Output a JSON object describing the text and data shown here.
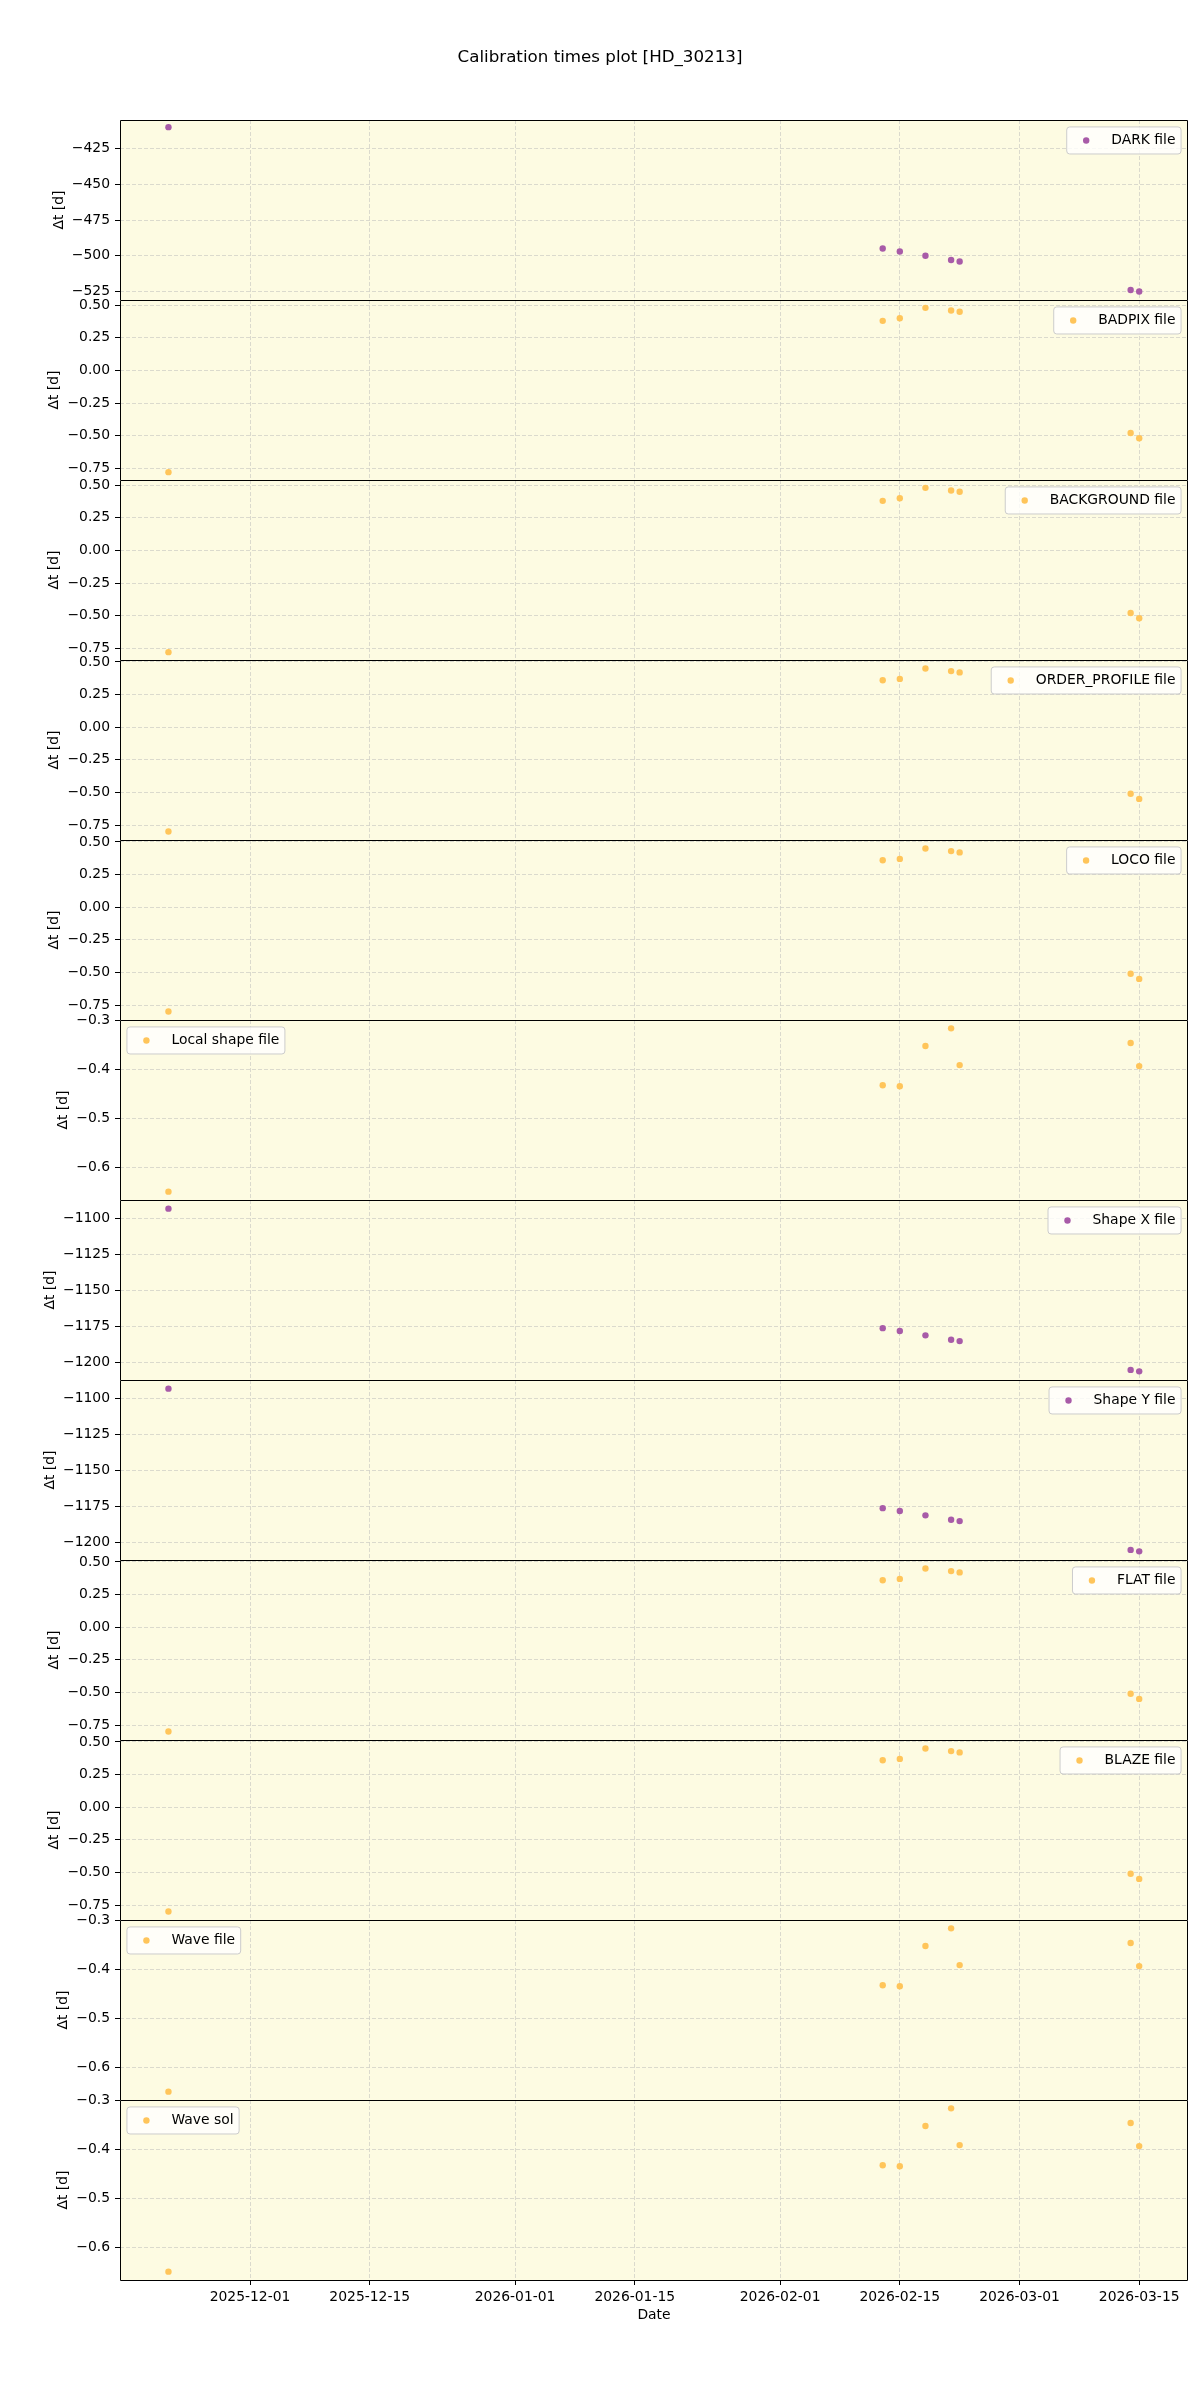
{
  "chart_data": [
    {
      "type": "scatter",
      "title": "Calibration times plot [HD_30213]",
      "ylabel": "Δt [d]",
      "x": [
        "2025-11-21T11:00",
        "2026-02-13",
        "2026-02-15",
        "2026-02-18",
        "2026-02-21",
        "2026-02-22",
        "2026-03-14",
        "2026-03-15"
      ],
      "series": [
        {
          "name": "DARK file",
          "color": "#a85ba8",
          "values": [
            -410,
            -495,
            -497,
            -500,
            -503,
            -504,
            -524,
            -525
          ]
        }
      ],
      "xlim": [
        "2025-11-15T19:00",
        "2026-03-20T17:00"
      ],
      "xticks": [
        "2025-12-01",
        "2025-12-15",
        "2026-01-01",
        "2026-01-15",
        "2026-02-01",
        "2026-02-15",
        "2026-03-01",
        "2026-03-15"
      ],
      "ylim": [
        -531,
        -405
      ],
      "yticks": [
        {
          "value": -525,
          "label": "−525"
        },
        {
          "value": -500,
          "label": "−500"
        },
        {
          "value": -475,
          "label": "−475"
        },
        {
          "value": -450,
          "label": "−450"
        },
        {
          "value": -425,
          "label": "−425"
        }
      ],
      "grid": true,
      "legend": "top right",
      "marker": "circle",
      "tick_labels": "y"
    },
    {
      "type": "scatter",
      "ylabel": "Δt [d]",
      "x": [
        "2025-11-21T11:00",
        "2026-02-13",
        "2026-02-15",
        "2026-02-18",
        "2026-02-21",
        "2026-02-22",
        "2026-03-14",
        "2026-03-15"
      ],
      "series": [
        {
          "name": "BADPIX file",
          "color": "#ffc55a",
          "values": [
            -0.78,
            0.38,
            0.4,
            0.48,
            0.46,
            0.45,
            -0.48,
            -0.52
          ]
        }
      ],
      "xlim": [
        "2025-11-15T19:00",
        "2026-03-20T17:00"
      ],
      "xticks": [
        "2025-12-01",
        "2025-12-15",
        "2026-01-01",
        "2026-01-15",
        "2026-02-01",
        "2026-02-15",
        "2026-03-01",
        "2026-03-15"
      ],
      "ylim": [
        -0.84,
        0.54
      ],
      "yticks": [
        {
          "value": -0.75,
          "label": "−0.75"
        },
        {
          "value": -0.5,
          "label": "−0.50"
        },
        {
          "value": -0.25,
          "label": "−0.25"
        },
        {
          "value": 0,
          "label": "0.00"
        },
        {
          "value": 0.25,
          "label": "0.25"
        },
        {
          "value": 0.5,
          "label": "0.50"
        }
      ],
      "grid": true,
      "legend": "top right",
      "marker": "circle",
      "tick_labels": "y"
    },
    {
      "type": "scatter",
      "ylabel": "Δt [d]",
      "x": [
        "2025-11-21T11:00",
        "2026-02-13",
        "2026-02-15",
        "2026-02-18",
        "2026-02-21",
        "2026-02-22",
        "2026-03-14",
        "2026-03-15"
      ],
      "series": [
        {
          "name": "BACKGROUND file",
          "color": "#ffc55a",
          "values": [
            -0.78,
            0.38,
            0.4,
            0.48,
            0.46,
            0.45,
            -0.48,
            -0.52
          ]
        }
      ],
      "xlim": [
        "2025-11-15T19:00",
        "2026-03-20T17:00"
      ],
      "xticks": [
        "2025-12-01",
        "2025-12-15",
        "2026-01-01",
        "2026-01-15",
        "2026-02-01",
        "2026-02-15",
        "2026-03-01",
        "2026-03-15"
      ],
      "ylim": [
        -0.84,
        0.54
      ],
      "yticks": [
        {
          "value": -0.75,
          "label": "−0.75"
        },
        {
          "value": -0.5,
          "label": "−0.50"
        },
        {
          "value": -0.25,
          "label": "−0.25"
        },
        {
          "value": 0,
          "label": "0.00"
        },
        {
          "value": 0.25,
          "label": "0.25"
        },
        {
          "value": 0.5,
          "label": "0.50"
        }
      ],
      "grid": true,
      "legend": "top right",
      "marker": "circle",
      "tick_labels": "y"
    },
    {
      "type": "scatter",
      "ylabel": "Δt [d]",
      "x": [
        "2025-11-21T11:00",
        "2026-02-13",
        "2026-02-15",
        "2026-02-18",
        "2026-02-21",
        "2026-02-22",
        "2026-03-14",
        "2026-03-15"
      ],
      "series": [
        {
          "name": "ORDER_PROFILE file",
          "color": "#ffc55a",
          "values": [
            -0.8,
            0.36,
            0.37,
            0.45,
            0.43,
            0.42,
            -0.51,
            -0.55
          ]
        }
      ],
      "xlim": [
        "2025-11-15T19:00",
        "2026-03-20T17:00"
      ],
      "xticks": [
        "2025-12-01",
        "2025-12-15",
        "2026-01-01",
        "2026-01-15",
        "2026-02-01",
        "2026-02-15",
        "2026-03-01",
        "2026-03-15"
      ],
      "ylim": [
        -0.865,
        0.515
      ],
      "yticks": [
        {
          "value": -0.75,
          "label": "−0.75"
        },
        {
          "value": -0.5,
          "label": "−0.50"
        },
        {
          "value": -0.25,
          "label": "−0.25"
        },
        {
          "value": 0,
          "label": "0.00"
        },
        {
          "value": 0.25,
          "label": "0.25"
        },
        {
          "value": 0.5,
          "label": "0.50"
        }
      ],
      "grid": true,
      "legend": "top right",
      "marker": "circle",
      "tick_labels": "y"
    },
    {
      "type": "scatter",
      "ylabel": "Δt [d]",
      "x": [
        "2025-11-21T11:00",
        "2026-02-13",
        "2026-02-15",
        "2026-02-18",
        "2026-02-21",
        "2026-02-22",
        "2026-03-14",
        "2026-03-15"
      ],
      "series": [
        {
          "name": "LOCO file",
          "color": "#ffc55a",
          "values": [
            -0.8,
            0.36,
            0.37,
            0.45,
            0.43,
            0.42,
            -0.51,
            -0.55
          ]
        }
      ],
      "xlim": [
        "2025-11-15T19:00",
        "2026-03-20T17:00"
      ],
      "xticks": [
        "2025-12-01",
        "2025-12-15",
        "2026-01-01",
        "2026-01-15",
        "2026-02-01",
        "2026-02-15",
        "2026-03-01",
        "2026-03-15"
      ],
      "ylim": [
        -0.865,
        0.515
      ],
      "yticks": [
        {
          "value": -0.75,
          "label": "−0.75"
        },
        {
          "value": -0.5,
          "label": "−0.50"
        },
        {
          "value": -0.25,
          "label": "−0.25"
        },
        {
          "value": 0,
          "label": "0.00"
        },
        {
          "value": 0.25,
          "label": "0.25"
        },
        {
          "value": 0.5,
          "label": "0.50"
        }
      ],
      "grid": true,
      "legend": "top right",
      "marker": "circle",
      "tick_labels": "y"
    },
    {
      "type": "scatter",
      "ylabel": "Δt [d]",
      "x": [
        "2025-11-21T11:00",
        "2026-02-13",
        "2026-02-15",
        "2026-02-18",
        "2026-02-21",
        "2026-02-22",
        "2026-03-14",
        "2026-03-15"
      ],
      "series": [
        {
          "name": "Local shape file",
          "color": "#ffc55a",
          "values": [
            -0.65,
            -0.433,
            -0.435,
            -0.353,
            -0.317,
            -0.392,
            -0.347,
            -0.394
          ]
        }
      ],
      "xlim": [
        "2025-11-15T19:00",
        "2026-03-20T17:00"
      ],
      "xticks": [
        "2025-12-01",
        "2025-12-15",
        "2026-01-01",
        "2026-01-15",
        "2026-02-01",
        "2026-02-15",
        "2026-03-01",
        "2026-03-15"
      ],
      "ylim": [
        -0.667,
        -0.3
      ],
      "yticks": [
        {
          "value": -0.6,
          "label": "−0.6"
        },
        {
          "value": -0.5,
          "label": "−0.5"
        },
        {
          "value": -0.4,
          "label": "−0.4"
        },
        {
          "value": -0.3,
          "label": "−0.3"
        }
      ],
      "grid": true,
      "legend": "top left",
      "marker": "circle",
      "tick_labels": "y"
    },
    {
      "type": "scatter",
      "ylabel": "Δt [d]",
      "x": [
        "2025-11-21T11:00",
        "2026-02-13",
        "2026-02-15",
        "2026-02-18",
        "2026-02-21",
        "2026-02-22",
        "2026-03-14",
        "2026-03-15"
      ],
      "series": [
        {
          "name": "Shape X file",
          "color": "#a85ba8",
          "values": [
            -1093,
            -1176,
            -1178,
            -1181,
            -1184,
            -1185,
            -1205,
            -1206
          ]
        }
      ],
      "xlim": [
        "2025-11-15T19:00",
        "2026-03-20T17:00"
      ],
      "xticks": [
        "2025-12-01",
        "2025-12-15",
        "2026-01-01",
        "2026-01-15",
        "2026-02-01",
        "2026-02-15",
        "2026-03-01",
        "2026-03-15"
      ],
      "ylim": [
        -1212,
        -1087
      ],
      "yticks": [
        {
          "value": -1200,
          "label": "−1200"
        },
        {
          "value": -1175,
          "label": "−1175"
        },
        {
          "value": -1150,
          "label": "−1150"
        },
        {
          "value": -1125,
          "label": "−1125"
        },
        {
          "value": -1100,
          "label": "−1100"
        }
      ],
      "grid": true,
      "legend": "top right",
      "marker": "circle",
      "tick_labels": "y"
    },
    {
      "type": "scatter",
      "ylabel": "Δt [d]",
      "x": [
        "2025-11-21T11:00",
        "2026-02-13",
        "2026-02-15",
        "2026-02-18",
        "2026-02-21",
        "2026-02-22",
        "2026-03-14",
        "2026-03-15"
      ],
      "series": [
        {
          "name": "Shape Y file",
          "color": "#a85ba8",
          "values": [
            -1093,
            -1176,
            -1178,
            -1181,
            -1184,
            -1185,
            -1205,
            -1206
          ]
        }
      ],
      "xlim": [
        "2025-11-15T19:00",
        "2026-03-20T17:00"
      ],
      "xticks": [
        "2025-12-01",
        "2025-12-15",
        "2026-01-01",
        "2026-01-15",
        "2026-02-01",
        "2026-02-15",
        "2026-03-01",
        "2026-03-15"
      ],
      "ylim": [
        -1212,
        -1087
      ],
      "yticks": [
        {
          "value": -1200,
          "label": "−1200"
        },
        {
          "value": -1175,
          "label": "−1175"
        },
        {
          "value": -1150,
          "label": "−1150"
        },
        {
          "value": -1125,
          "label": "−1125"
        },
        {
          "value": -1100,
          "label": "−1100"
        }
      ],
      "grid": true,
      "legend": "top right",
      "marker": "circle",
      "tick_labels": "y"
    },
    {
      "type": "scatter",
      "ylabel": "Δt [d]",
      "x": [
        "2025-11-21T11:00",
        "2026-02-13",
        "2026-02-15",
        "2026-02-18",
        "2026-02-21",
        "2026-02-22",
        "2026-03-14",
        "2026-03-15"
      ],
      "series": [
        {
          "name": "FLAT file",
          "color": "#ffc55a",
          "values": [
            -0.8,
            0.36,
            0.37,
            0.45,
            0.43,
            0.42,
            -0.51,
            -0.55
          ]
        }
      ],
      "xlim": [
        "2025-11-15T19:00",
        "2026-03-20T17:00"
      ],
      "xticks": [
        "2025-12-01",
        "2025-12-15",
        "2026-01-01",
        "2026-01-15",
        "2026-02-01",
        "2026-02-15",
        "2026-03-01",
        "2026-03-15"
      ],
      "ylim": [
        -0.865,
        0.515
      ],
      "yticks": [
        {
          "value": -0.75,
          "label": "−0.75"
        },
        {
          "value": -0.5,
          "label": "−0.50"
        },
        {
          "value": -0.25,
          "label": "−0.25"
        },
        {
          "value": 0,
          "label": "0.00"
        },
        {
          "value": 0.25,
          "label": "0.25"
        },
        {
          "value": 0.5,
          "label": "0.50"
        }
      ],
      "grid": true,
      "legend": "top right",
      "marker": "circle",
      "tick_labels": "y"
    },
    {
      "type": "scatter",
      "ylabel": "Δt [d]",
      "x": [
        "2025-11-21T11:00",
        "2026-02-13",
        "2026-02-15",
        "2026-02-18",
        "2026-02-21",
        "2026-02-22",
        "2026-03-14",
        "2026-03-15"
      ],
      "series": [
        {
          "name": "BLAZE file",
          "color": "#ffc55a",
          "values": [
            -0.8,
            0.36,
            0.37,
            0.45,
            0.43,
            0.42,
            -0.51,
            -0.55
          ]
        }
      ],
      "xlim": [
        "2025-11-15T19:00",
        "2026-03-20T17:00"
      ],
      "xticks": [
        "2025-12-01",
        "2025-12-15",
        "2026-01-01",
        "2026-01-15",
        "2026-02-01",
        "2026-02-15",
        "2026-03-01",
        "2026-03-15"
      ],
      "ylim": [
        -0.865,
        0.515
      ],
      "yticks": [
        {
          "value": -0.75,
          "label": "−0.75"
        },
        {
          "value": -0.5,
          "label": "−0.50"
        },
        {
          "value": -0.25,
          "label": "−0.25"
        },
        {
          "value": 0,
          "label": "0.00"
        },
        {
          "value": 0.25,
          "label": "0.25"
        },
        {
          "value": 0.5,
          "label": "0.50"
        }
      ],
      "grid": true,
      "legend": "top right",
      "marker": "circle",
      "tick_labels": "y"
    },
    {
      "type": "scatter",
      "ylabel": "Δt [d]",
      "x": [
        "2025-11-21T11:00",
        "2026-02-13",
        "2026-02-15",
        "2026-02-18",
        "2026-02-21",
        "2026-02-22",
        "2026-03-14",
        "2026-03-15"
      ],
      "series": [
        {
          "name": "Wave file",
          "color": "#ffc55a",
          "values": [
            -0.65,
            -0.433,
            -0.435,
            -0.353,
            -0.317,
            -0.392,
            -0.347,
            -0.394
          ]
        }
      ],
      "xlim": [
        "2025-11-15T19:00",
        "2026-03-20T17:00"
      ],
      "xticks": [
        "2025-12-01",
        "2025-12-15",
        "2026-01-01",
        "2026-01-15",
        "2026-02-01",
        "2026-02-15",
        "2026-03-01",
        "2026-03-15"
      ],
      "ylim": [
        -0.667,
        -0.3
      ],
      "yticks": [
        {
          "value": -0.6,
          "label": "−0.6"
        },
        {
          "value": -0.5,
          "label": "−0.5"
        },
        {
          "value": -0.4,
          "label": "−0.4"
        },
        {
          "value": -0.3,
          "label": "−0.3"
        }
      ],
      "grid": true,
      "legend": "top left",
      "marker": "circle",
      "tick_labels": "y"
    },
    {
      "type": "scatter",
      "xlabel": "Date",
      "ylabel": "Δt [d]",
      "x": [
        "2025-11-21T11:00",
        "2026-02-13",
        "2026-02-15",
        "2026-02-18",
        "2026-02-21",
        "2026-02-22",
        "2026-03-14",
        "2026-03-15"
      ],
      "series": [
        {
          "name": "Wave sol",
          "color": "#ffc55a",
          "values": [
            -0.65,
            -0.433,
            -0.435,
            -0.353,
            -0.317,
            -0.392,
            -0.347,
            -0.394
          ]
        }
      ],
      "xlim": [
        "2025-11-15T19:00",
        "2026-03-20T17:00"
      ],
      "xticks": [
        "2025-12-01",
        "2025-12-15",
        "2026-01-01",
        "2026-01-15",
        "2026-02-01",
        "2026-02-15",
        "2026-03-01",
        "2026-03-15"
      ],
      "ylim": [
        -0.667,
        -0.3
      ],
      "yticks": [
        {
          "value": -0.6,
          "label": "−0.6"
        },
        {
          "value": -0.5,
          "label": "−0.5"
        },
        {
          "value": -0.4,
          "label": "−0.4"
        },
        {
          "value": -0.3,
          "label": "−0.3"
        }
      ],
      "grid": true,
      "legend": "top left",
      "marker": "circle"
    }
  ]
}
